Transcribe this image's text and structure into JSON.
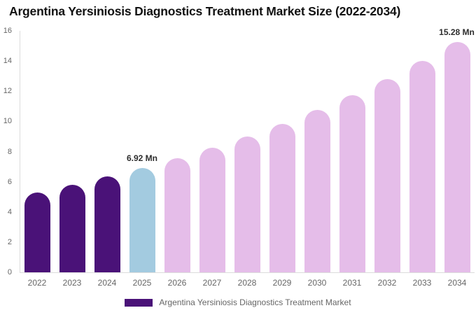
{
  "chart_data": {
    "type": "bar",
    "title": "Argentina Yersiniosis Diagnostics Treatment Market Size (2022-2034)",
    "xlabel": "",
    "ylabel": "",
    "unit": "Mn",
    "categories": [
      "2022",
      "2023",
      "2024",
      "2025",
      "2026",
      "2027",
      "2028",
      "2029",
      "2030",
      "2031",
      "2032",
      "2033",
      "2034"
    ],
    "series": [
      {
        "name": "Argentina Yersiniosis Diagnostics Treatment Market",
        "values": [
          5.31,
          5.8,
          6.34,
          6.92,
          7.56,
          8.25,
          9.01,
          9.84,
          10.74,
          11.73,
          12.81,
          13.99,
          15.28
        ]
      }
    ],
    "bar_colors": [
      "#4a1278",
      "#4a1278",
      "#4a1278",
      "#a3cbe0",
      "#e5bde9",
      "#e5bde9",
      "#e5bde9",
      "#e5bde9",
      "#e5bde9",
      "#e5bde9",
      "#e5bde9",
      "#e5bde9",
      "#e5bde9"
    ],
    "annotations": [
      {
        "category": "2025",
        "label": "6.92 Mn"
      },
      {
        "category": "2034",
        "label": "15.28 Mn"
      }
    ],
    "ylim": [
      0,
      16
    ],
    "ytick_step": 2,
    "ytick_labels": [
      "0",
      "2",
      "4",
      "6",
      "8",
      "10",
      "12",
      "14",
      "16"
    ],
    "grid": false,
    "legend_position": "bottom-center",
    "legend": {
      "label": "Argentina Yersiniosis Diagnostics Treatment Market",
      "swatch_color": "#4a1278"
    },
    "colors": {
      "historical_bar": "#4a1278",
      "highlight_bar": "#a3cbe0",
      "forecast_bar": "#e5bde9",
      "axis_line": "#dcdcdc",
      "axis_text": "#666666",
      "annotation_text": "#2d2d2d",
      "title_text": "#121212",
      "background": "#ffffff"
    }
  }
}
